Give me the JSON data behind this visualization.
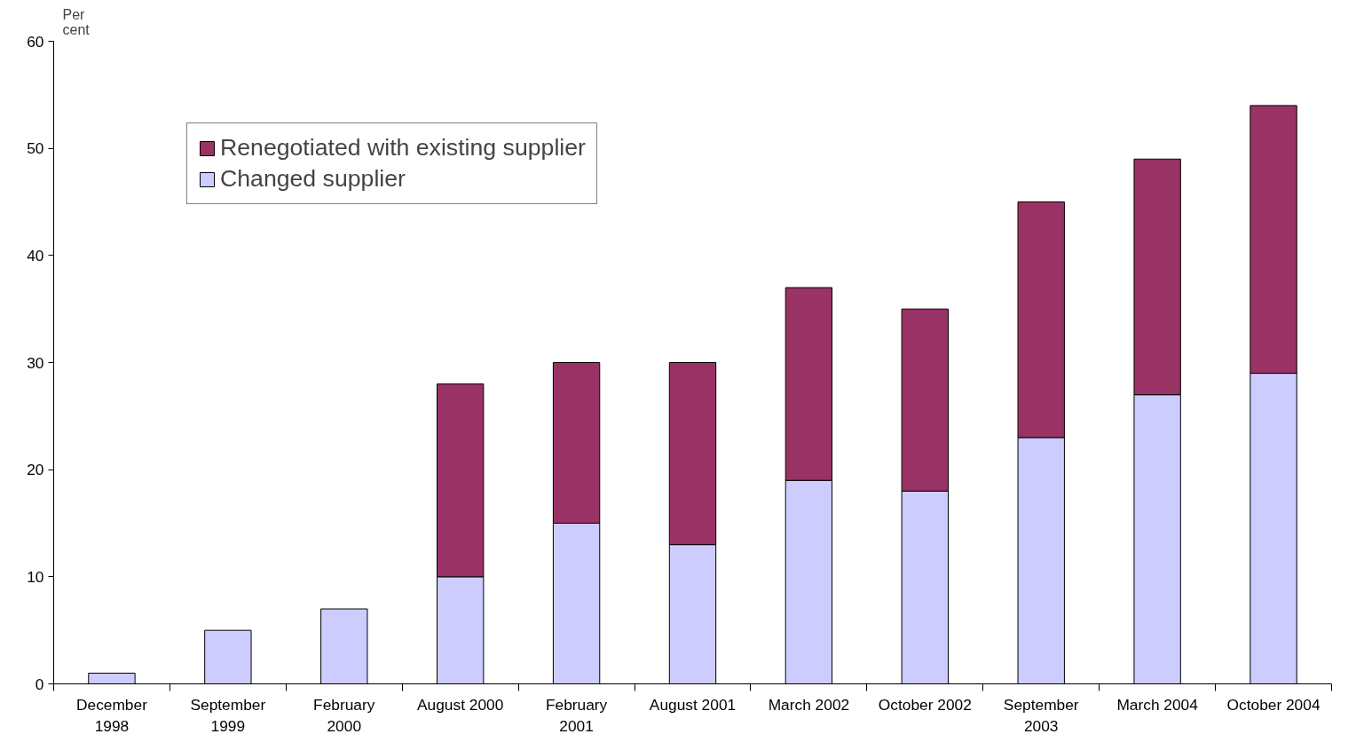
{
  "chart_data": {
    "type": "bar",
    "stacked": true,
    "ylabel": "Per cent",
    "categories": [
      "December 1998",
      "September 1999",
      "February 2000",
      "August 2000",
      "February 2001",
      "August 2001",
      "March 2002",
      "October 2002",
      "September 2003",
      "March 2004",
      "October 2004"
    ],
    "series": [
      {
        "name": "Changed supplier",
        "color": "#ccccff",
        "values": [
          1,
          5,
          7,
          10,
          15,
          13,
          19,
          18,
          23,
          27,
          29
        ]
      },
      {
        "name": "Renegotiated with existing supplier",
        "color": "#993366",
        "values": [
          null,
          null,
          null,
          18,
          15,
          17,
          18,
          17,
          22,
          22,
          25
        ]
      }
    ],
    "ylim": [
      0,
      60
    ],
    "yticks": [
      0,
      10,
      20,
      30,
      40,
      50,
      60
    ],
    "grid": false,
    "legend": "top left"
  }
}
